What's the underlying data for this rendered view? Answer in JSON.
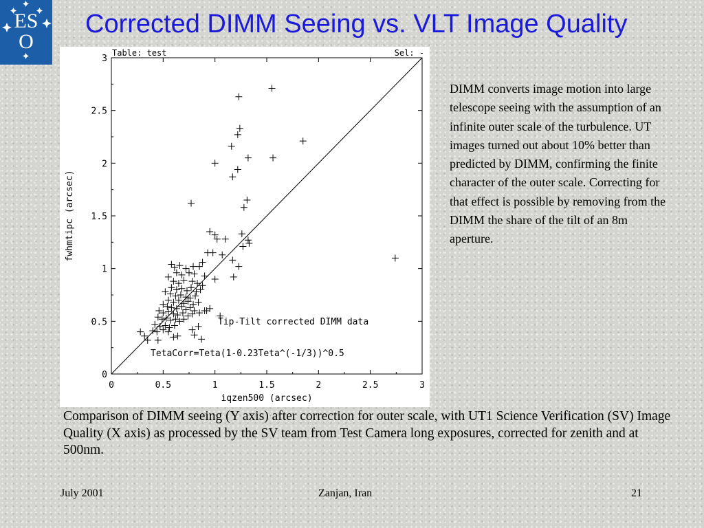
{
  "slide": {
    "title": "Corrected DIMM Seeing vs. VLT Image Quality",
    "side_text": "DIMM converts image motion into large telescope seeing with the assumption of an infinite outer scale of the turbulence. UT images turned out about 10% better than predicted by DIMM, confirming the finite character of the outer scale. Correcting for that effect is possible by removing from the DIMM the share of the tilt of an 8m aperture.",
    "caption": "Comparison of DIMM seeing (Y axis) after correction for outer scale, with UT1 Science Verification (SV) Image Quality (X axis) as processed by the SV team from Test Camera long exposures, corrected for zenith and at 500nm.",
    "footer": {
      "left": "July 2001",
      "center": "Zanjan, Iran",
      "right": "21"
    },
    "logo_text": "ESO"
  },
  "chart_data": {
    "type": "scatter",
    "header_left": "Table: test",
    "header_right": "Sel: -",
    "xlabel": "iqzen500 (arcsec)",
    "ylabel": "fwhmtipc (arcsec)",
    "xlim": [
      0,
      3
    ],
    "ylim": [
      0,
      3
    ],
    "xticks": [
      "0",
      "0.5",
      "1",
      "1.5",
      "2",
      "2.5",
      "3"
    ],
    "yticks": [
      "0",
      "0.5",
      "1",
      "1.5",
      "2",
      "2.5",
      "3"
    ],
    "marker": "+",
    "reference_line": {
      "from": [
        0,
        0
      ],
      "to": [
        3,
        3
      ]
    },
    "annotations": [
      "Tip-Tilt corrected DIMM data",
      "TetaCorr=Teta(1-0.23Teta^(-1/3))^0.5"
    ],
    "points": [
      [
        1.55,
        2.71
      ],
      [
        1.23,
        2.63
      ],
      [
        1.24,
        2.33
      ],
      [
        1.22,
        2.27
      ],
      [
        1.85,
        2.21
      ],
      [
        1.16,
        2.16
      ],
      [
        1.56,
        2.05
      ],
      [
        1.32,
        2.05
      ],
      [
        1.0,
        2.0
      ],
      [
        1.22,
        1.94
      ],
      [
        1.17,
        1.87
      ],
      [
        1.31,
        1.65
      ],
      [
        0.77,
        1.62
      ],
      [
        1.28,
        1.58
      ],
      [
        0.95,
        1.35
      ],
      [
        1.0,
        1.32
      ],
      [
        1.02,
        1.28
      ],
      [
        1.1,
        1.28
      ],
      [
        1.26,
        1.33
      ],
      [
        1.32,
        1.27
      ],
      [
        1.33,
        1.24
      ],
      [
        1.27,
        1.21
      ],
      [
        0.93,
        1.15
      ],
      [
        0.98,
        1.15
      ],
      [
        1.07,
        1.13
      ],
      [
        1.17,
        1.08
      ],
      [
        1.23,
        1.02
      ],
      [
        1.18,
        0.92
      ],
      [
        2.74,
        1.1
      ],
      [
        0.58,
        1.04
      ],
      [
        0.61,
        1.01
      ],
      [
        0.66,
        1.03
      ],
      [
        0.72,
        1.0
      ],
      [
        0.79,
        1.02
      ],
      [
        0.85,
        1.02
      ],
      [
        0.88,
        1.06
      ],
      [
        0.63,
        0.96
      ],
      [
        0.68,
        0.94
      ],
      [
        0.75,
        0.96
      ],
      [
        0.8,
        0.95
      ],
      [
        0.9,
        0.93
      ],
      [
        1.0,
        0.9
      ],
      [
        0.55,
        0.92
      ],
      [
        0.6,
        0.88
      ],
      [
        0.65,
        0.86
      ],
      [
        0.7,
        0.89
      ],
      [
        0.78,
        0.88
      ],
      [
        0.83,
        0.86
      ],
      [
        0.88,
        0.84
      ],
      [
        0.58,
        0.82
      ],
      [
        0.63,
        0.8
      ],
      [
        0.68,
        0.81
      ],
      [
        0.73,
        0.79
      ],
      [
        0.77,
        0.82
      ],
      [
        0.82,
        0.78
      ],
      [
        0.86,
        0.8
      ],
      [
        0.52,
        0.78
      ],
      [
        0.57,
        0.76
      ],
      [
        0.62,
        0.74
      ],
      [
        0.67,
        0.75
      ],
      [
        0.72,
        0.73
      ],
      [
        0.76,
        0.72
      ],
      [
        0.81,
        0.74
      ],
      [
        0.55,
        0.7
      ],
      [
        0.6,
        0.68
      ],
      [
        0.65,
        0.7
      ],
      [
        0.7,
        0.67
      ],
      [
        0.74,
        0.69
      ],
      [
        0.79,
        0.66
      ],
      [
        0.84,
        0.68
      ],
      [
        0.5,
        0.66
      ],
      [
        0.54,
        0.64
      ],
      [
        0.58,
        0.63
      ],
      [
        0.63,
        0.62
      ],
      [
        0.68,
        0.64
      ],
      [
        0.72,
        0.61
      ],
      [
        0.76,
        0.63
      ],
      [
        0.8,
        0.6
      ],
      [
        0.46,
        0.6
      ],
      [
        0.5,
        0.58
      ],
      [
        0.55,
        0.59
      ],
      [
        0.6,
        0.57
      ],
      [
        0.64,
        0.56
      ],
      [
        0.69,
        0.58
      ],
      [
        0.74,
        0.55
      ],
      [
        0.78,
        0.57
      ],
      [
        0.9,
        0.6
      ],
      [
        0.45,
        0.54
      ],
      [
        0.49,
        0.52
      ],
      [
        0.53,
        0.53
      ],
      [
        0.57,
        0.51
      ],
      [
        0.62,
        0.52
      ],
      [
        0.66,
        0.5
      ],
      [
        0.7,
        0.52
      ],
      [
        0.85,
        0.58
      ],
      [
        0.95,
        0.62
      ],
      [
        0.42,
        0.47
      ],
      [
        0.47,
        0.45
      ],
      [
        0.52,
        0.46
      ],
      [
        0.56,
        0.44
      ],
      [
        0.61,
        0.46
      ],
      [
        0.4,
        0.41
      ],
      [
        0.44,
        0.4
      ],
      [
        0.5,
        0.42
      ],
      [
        0.55,
        0.4
      ],
      [
        0.28,
        0.4
      ],
      [
        0.32,
        0.36
      ],
      [
        0.35,
        0.32
      ],
      [
        0.45,
        0.32
      ],
      [
        0.6,
        0.35
      ],
      [
        0.64,
        0.36
      ],
      [
        0.8,
        0.37
      ],
      [
        0.87,
        0.33
      ],
      [
        0.92,
        0.6
      ],
      [
        1.05,
        0.55
      ],
      [
        0.84,
        0.45
      ],
      [
        0.78,
        0.42
      ]
    ]
  }
}
